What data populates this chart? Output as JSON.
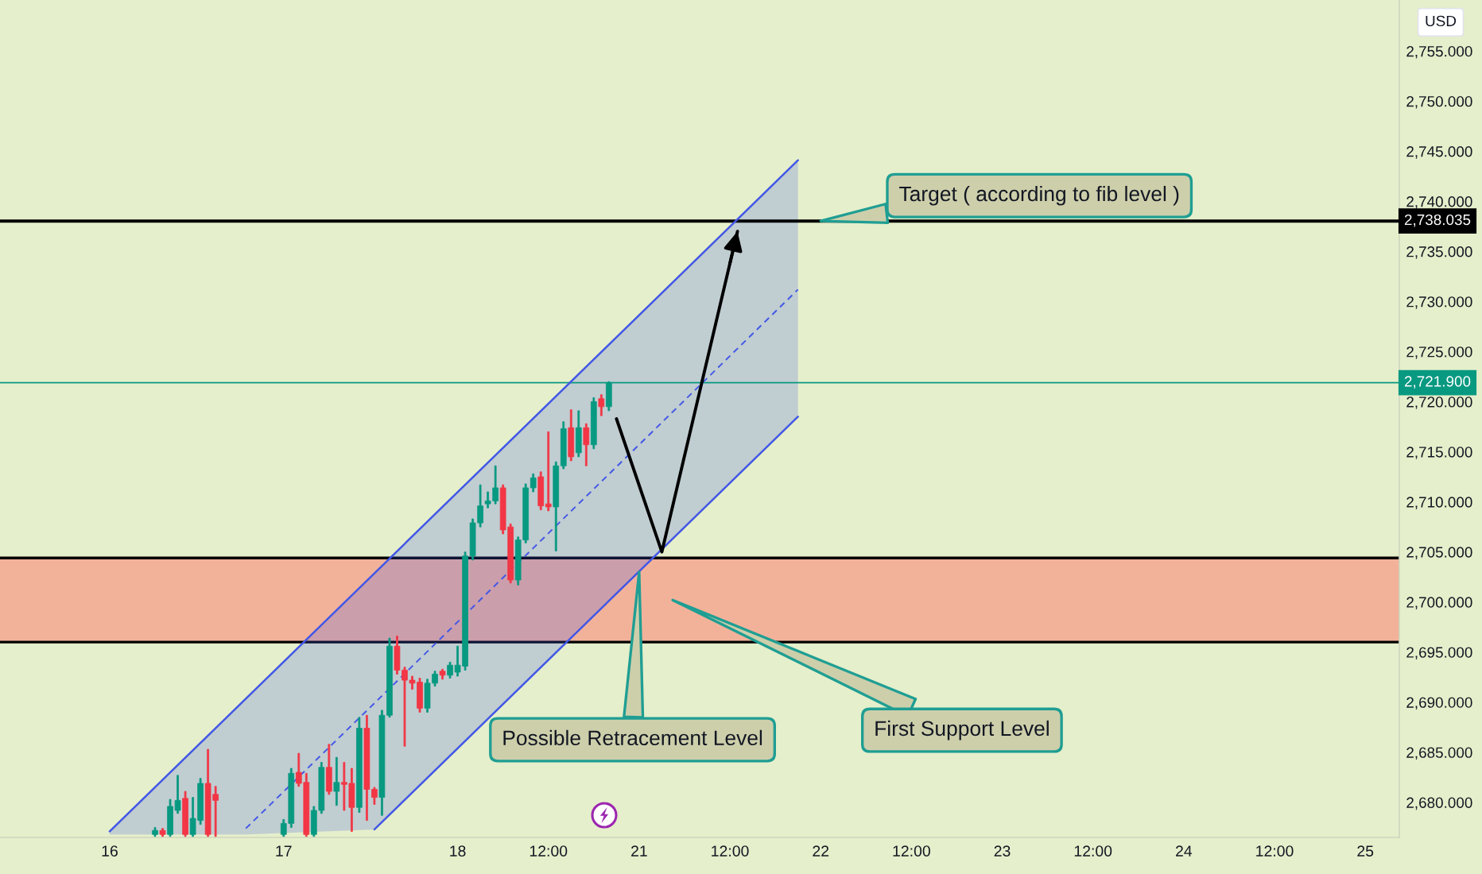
{
  "chart_data": {
    "type": "candlestick",
    "ylabel": "USD",
    "categories": [
      null,
      null,
      null,
      null,
      null,
      null,
      null,
      null,
      null,
      null,
      null,
      null,
      null,
      null,
      "16",
      null,
      null,
      null,
      null,
      null,
      null,
      null,
      null,
      null,
      null,
      null,
      null,
      null,
      null,
      null,
      null,
      null,
      null,
      null,
      null,
      null,
      null,
      "17",
      null,
      null,
      null,
      null,
      null,
      null,
      null,
      null,
      null,
      null,
      null,
      null,
      null,
      null,
      null,
      null,
      null,
      null,
      null,
      null,
      null,
      null,
      "18",
      null,
      null,
      null,
      null,
      null,
      null,
      null,
      null,
      null,
      null,
      null,
      "12:00",
      null,
      null,
      null,
      null,
      null,
      null,
      null,
      null,
      null,
      null,
      null,
      "21",
      null,
      null,
      null,
      null,
      null,
      null,
      null,
      null,
      null,
      null,
      null,
      "12:00",
      null,
      null,
      null,
      null,
      null,
      null,
      null,
      null,
      null,
      null,
      null,
      "22",
      null,
      null,
      null,
      null,
      null,
      null,
      null,
      null,
      null,
      null,
      null,
      "12:00",
      null,
      null,
      null,
      null,
      null,
      null,
      null,
      null,
      null,
      null,
      null,
      "23",
      null,
      null,
      null,
      null,
      null,
      null,
      null,
      null,
      null,
      null,
      null,
      "12:00",
      null,
      null,
      null,
      null,
      null,
      null,
      null,
      null,
      null,
      null,
      null,
      "24",
      null,
      null,
      null,
      null,
      null,
      null,
      null,
      null,
      null,
      null,
      null,
      "12:00",
      null,
      null,
      null,
      null,
      null,
      null,
      null,
      null,
      null,
      null,
      null,
      "25",
      null,
      null,
      null,
      null
    ],
    "ohlc": [
      null,
      null,
      null,
      null,
      null,
      null,
      null,
      null,
      null,
      null,
      null,
      null,
      null,
      null,
      null,
      null,
      null,
      null,
      null,
      null,
      [
        2676.8,
        2677.5,
        2676.6,
        2677.2
      ],
      [
        2677.2,
        2677.4,
        2676.6,
        2676.8
      ],
      [
        2676.8,
        2680.3,
        2676.6,
        2679.6
      ],
      [
        2679.2,
        2682.7,
        2678.9,
        2680.2
      ],
      [
        2680.4,
        2681.1,
        2676.6,
        2676.8
      ],
      [
        2676.8,
        2680.5,
        2676.6,
        2678.4
      ],
      [
        2678.2,
        2682.4,
        2677.8,
        2681.9
      ],
      [
        2681.9,
        2685.3,
        2676.6,
        2676.8
      ],
      [
        2680.8,
        2681.6,
        2676.6,
        2680.2
      ],
      null,
      null,
      null,
      null,
      null,
      null,
      null,
      null,
      [
        2676.8,
        2678.3,
        2676.6,
        2677.9
      ],
      [
        2677.9,
        2683.4,
        2677.5,
        2682.9
      ],
      [
        2683.0,
        2684.9,
        2681.6,
        2681.9
      ],
      [
        2682.0,
        2682.9,
        2676.6,
        2676.8
      ],
      [
        2676.8,
        2679.6,
        2676.6,
        2679.2
      ],
      [
        2679.2,
        2684.0,
        2678.9,
        2683.5
      ],
      [
        2683.5,
        2685.8,
        2680.8,
        2681.1
      ],
      [
        2681.1,
        2684.5,
        2679.7,
        2682.0
      ],
      [
        2682.0,
        2684.0,
        2679.2,
        2681.8
      ],
      [
        2681.9,
        2683.4,
        2677.1,
        2679.5
      ],
      [
        2679.5,
        2688.5,
        2679.0,
        2687.4
      ],
      [
        2687.4,
        2688.7,
        2678.2,
        2681.3
      ],
      [
        2681.3,
        2681.5,
        2679.8,
        2680.5
      ],
      [
        2680.5,
        2689.2,
        2678.7,
        2688.7
      ],
      [
        2688.7,
        2696.4,
        2688.5,
        2695.6
      ],
      [
        2695.6,
        2696.6,
        2692.8,
        2693.2
      ],
      [
        2693.2,
        2693.5,
        2685.6,
        2692.2
      ],
      [
        2692.2,
        2692.6,
        2691.3,
        2691.9
      ],
      [
        2692.0,
        2692.4,
        2689.0,
        2689.4
      ],
      [
        2689.4,
        2692.3,
        2689.0,
        2691.9
      ],
      [
        2691.9,
        2693.1,
        2691.6,
        2692.8
      ],
      [
        2693.1,
        2693.3,
        2692.3,
        2692.7
      ],
      [
        2692.7,
        2694.0,
        2692.4,
        2693.7
      ],
      [
        2693.0,
        2695.6,
        2692.6,
        2693.7
      ],
      [
        2693.6,
        2705.0,
        2693.2,
        2704.6
      ],
      [
        2704.6,
        2708.3,
        2704.2,
        2707.9
      ],
      [
        2707.9,
        2711.7,
        2707.5,
        2709.6
      ],
      [
        2709.8,
        2711.0,
        2709.4,
        2710.1
      ],
      [
        2710.1,
        2713.6,
        2709.8,
        2711.4
      ],
      [
        2711.4,
        2711.7,
        2706.8,
        2707.2
      ],
      [
        2707.5,
        2707.8,
        2701.9,
        2702.2
      ],
      [
        2702.2,
        2706.5,
        2701.7,
        2706.2
      ],
      [
        2706.2,
        2711.8,
        2705.9,
        2711.4
      ],
      [
        2711.4,
        2712.8,
        2711.0,
        2712.4
      ],
      [
        2712.5,
        2713.0,
        2709.2,
        2709.6
      ],
      [
        2709.8,
        2717.0,
        2709.1,
        2709.5
      ],
      [
        2709.5,
        2714.0,
        2705.1,
        2713.6
      ],
      [
        2713.6,
        2718.0,
        2713.3,
        2717.3
      ],
      [
        2717.4,
        2719.2,
        2714.1,
        2714.5
      ],
      [
        2714.9,
        2719.1,
        2714.5,
        2717.4
      ],
      [
        2717.4,
        2717.8,
        2713.6,
        2715.7
      ],
      [
        2715.7,
        2720.4,
        2715.3,
        2720.0
      ],
      [
        2720.3,
        2720.7,
        2718.6,
        2719.5
      ],
      [
        2719.5,
        2722.0,
        2719.1,
        2721.9
      ],
      null,
      null,
      null,
      null,
      null,
      null,
      null,
      null,
      null,
      null,
      null,
      null,
      null,
      null,
      null,
      null,
      null,
      null,
      null,
      null,
      null,
      null,
      null,
      null,
      null,
      null,
      null,
      null,
      null,
      null,
      null,
      null,
      null,
      null,
      null,
      null,
      null,
      null,
      null,
      null,
      null,
      null,
      null,
      null,
      null,
      null,
      null,
      null,
      null,
      null,
      null,
      null,
      null,
      null,
      null,
      null,
      null,
      null,
      null,
      null,
      null,
      null,
      null,
      null,
      null,
      null,
      null,
      null,
      null,
      null,
      null,
      null,
      null,
      null,
      null,
      null,
      null,
      null,
      null,
      null,
      null,
      null,
      null,
      null,
      null,
      null,
      null,
      null,
      null,
      null,
      null,
      null,
      null,
      null,
      null,
      null,
      null,
      null,
      null,
      null,
      null,
      null,
      null,
      null
    ],
    "colors": [
      null,
      null,
      null,
      null,
      null,
      null,
      null,
      null,
      null,
      null,
      null,
      null,
      null,
      null,
      null,
      null,
      null,
      null,
      null,
      null,
      "#089981",
      "#f23645",
      "#089981",
      "#089981",
      "#f23645",
      "#089981",
      "#089981",
      "#f23645",
      "#f23645",
      null,
      null,
      null,
      null,
      null,
      null,
      null,
      null,
      "#089981",
      "#089981",
      "#f23645",
      "#f23645",
      "#089981",
      "#089981",
      "#f23645",
      "#089981",
      "#f23645",
      "#f23645",
      "#089981",
      "#f23645",
      "#f23645",
      "#089981",
      "#089981",
      "#f23645",
      "#f23645",
      "#f23645",
      "#f23645",
      "#089981",
      "#089981",
      "#f23645",
      "#089981",
      "#089981",
      "#089981",
      "#089981",
      "#089981",
      "#089981",
      "#089981",
      "#f23645",
      "#f23645",
      "#089981",
      "#089981",
      "#089981",
      "#f23645",
      "#f23645",
      "#089981",
      "#089981",
      "#f23645",
      "#089981",
      "#f23645",
      "#089981",
      "#f23645",
      "#089981",
      null,
      null,
      null,
      null,
      null,
      null,
      null,
      null,
      null,
      null,
      null,
      null,
      null,
      null,
      null,
      null,
      null,
      null,
      null,
      null,
      null,
      null,
      null,
      null,
      null,
      null,
      null,
      null,
      null,
      null,
      null,
      null,
      null,
      null,
      null,
      null,
      null,
      null,
      null,
      null,
      null,
      null,
      null,
      null,
      null,
      null,
      null,
      null,
      null,
      null,
      null,
      null,
      null,
      null,
      null,
      null,
      null,
      null,
      null,
      null,
      null,
      null,
      null,
      null,
      null,
      null,
      null,
      null,
      null,
      null,
      null,
      null,
      null,
      null,
      null,
      null,
      null,
      null,
      null,
      null,
      null,
      null,
      null,
      null,
      null,
      null,
      null,
      null,
      null,
      null,
      null,
      null,
      null,
      null,
      null,
      null,
      null,
      null,
      null,
      null,
      null,
      null,
      null,
      null
    ],
    "series": [
      {
        "type": "line",
        "color": "#4257e6",
        "line_style": "solid",
        "values": [
          null,
          null,
          null,
          null,
          null,
          null,
          null,
          null,
          null,
          null,
          null,
          null,
          null,
          null,
          2677.1,
          null,
          null,
          null,
          null,
          null,
          null,
          null,
          null,
          null,
          null,
          null,
          null,
          null,
          null,
          null,
          null,
          null,
          null,
          null,
          null,
          null,
          null,
          null,
          null,
          null,
          null,
          null,
          null,
          null,
          null,
          null,
          null,
          null,
          null,
          null,
          null,
          null,
          null,
          null,
          null,
          null,
          null,
          null,
          null,
          null,
          null,
          null,
          null,
          null,
          null,
          null,
          null,
          null,
          null,
          null,
          null,
          null,
          null,
          null,
          null,
          null,
          null,
          null,
          null,
          null,
          null,
          null,
          null,
          null,
          null,
          null,
          null,
          null,
          null,
          null,
          null,
          null,
          null,
          null,
          null,
          null,
          null,
          null,
          null,
          null,
          null,
          null,
          null,
          null,
          null,
          2744.1,
          null,
          null,
          null,
          null,
          null,
          null,
          null,
          null,
          null,
          null,
          null,
          null,
          null,
          null,
          null,
          null,
          null,
          null,
          null,
          null,
          null,
          null,
          null,
          null,
          null,
          null,
          null,
          null,
          null,
          null,
          null,
          null,
          null,
          null,
          null,
          null,
          null,
          null,
          null,
          null,
          null,
          null,
          null,
          null,
          null,
          null,
          null,
          null,
          null,
          null,
          null,
          null,
          null,
          null,
          null,
          null,
          null,
          null,
          null,
          null,
          null,
          null,
          null,
          null,
          null,
          null,
          null,
          null,
          null,
          null,
          null,
          null,
          null,
          null,
          null,
          null,
          null,
          null,
          null
        ]
      },
      {
        "type": "line",
        "color": "#4257e6",
        "line_style": "dashed",
        "values": [
          null,
          null,
          null,
          null,
          null,
          null,
          null,
          null,
          null,
          null,
          null,
          null,
          null,
          null,
          null,
          null,
          null,
          null,
          null,
          null,
          null,
          null,
          null,
          null,
          null,
          null,
          null,
          null,
          null,
          null,
          null,
          null,
          2677.4,
          null,
          null,
          null,
          null,
          null,
          null,
          null,
          null,
          null,
          null,
          null,
          null,
          null,
          null,
          null,
          null,
          2689.9,
          null,
          null,
          null,
          null,
          null,
          null,
          null,
          null,
          null,
          null,
          null,
          null,
          null,
          null,
          null,
          null,
          null,
          null,
          null,
          null,
          null,
          null,
          null,
          null,
          null,
          null,
          null,
          null,
          null,
          null,
          null,
          null,
          null,
          null,
          null,
          null,
          null,
          null,
          null,
          null,
          null,
          null,
          null,
          null,
          null,
          null,
          null,
          null,
          null,
          null,
          null,
          null,
          null,
          null,
          null,
          2731.2,
          null,
          null,
          null,
          null,
          null,
          null,
          null,
          null,
          null,
          null,
          null,
          null,
          null,
          null,
          null,
          null,
          null,
          null,
          null,
          null,
          null,
          null,
          null,
          null,
          null,
          null,
          null,
          null,
          null,
          null,
          null,
          null,
          null,
          null,
          null,
          null,
          null,
          null,
          null,
          null,
          null,
          null,
          null,
          null,
          null,
          null,
          null,
          null,
          null,
          null,
          null,
          null,
          null,
          null,
          null,
          null,
          null,
          null,
          null,
          null,
          null,
          null,
          null,
          null,
          null,
          null,
          null,
          null,
          null,
          null,
          null,
          null,
          null,
          null,
          null,
          null,
          null,
          null,
          null
        ],
        "lower": [
          null,
          null,
          null,
          null,
          null,
          null,
          null,
          null,
          null,
          null,
          null,
          null,
          null,
          null,
          2676.8,
          null,
          null,
          null,
          null,
          null,
          null,
          null,
          null,
          null,
          null,
          null,
          null,
          null,
          null,
          null,
          null,
          null,
          2676.8,
          null,
          null,
          null,
          null,
          null,
          null,
          null,
          null,
          null,
          null,
          null,
          null,
          null,
          null,
          null,
          null,
          2677.3,
          null,
          null,
          null,
          null,
          null,
          null,
          null,
          null,
          null,
          null,
          null,
          null,
          null,
          null,
          null,
          null,
          null,
          null,
          null,
          null,
          null,
          null,
          null,
          null,
          null,
          null,
          null,
          null,
          null,
          null,
          null,
          null,
          null,
          null,
          null,
          null,
          null,
          null,
          null,
          null,
          null,
          null,
          null,
          null,
          null,
          null,
          null,
          null,
          null,
          null,
          null,
          null,
          null,
          null,
          null,
          2718.5,
          null,
          null,
          null,
          null,
          null,
          null,
          null,
          null,
          null,
          null,
          null,
          null,
          null,
          null,
          null,
          null,
          null,
          null,
          null,
          null,
          null,
          null,
          null,
          null,
          null,
          null,
          null,
          null,
          null,
          null,
          null,
          null,
          null,
          null,
          null,
          null,
          null,
          null,
          null,
          null,
          null,
          null,
          null,
          null,
          null,
          null,
          null,
          null,
          null,
          null,
          null,
          null,
          null,
          null,
          null,
          null,
          null,
          null,
          null,
          null,
          null,
          null,
          null,
          null,
          null,
          null,
          null,
          null,
          null,
          null,
          null,
          null,
          null,
          null,
          null,
          null,
          null,
          null,
          null
        ],
        "upper": [
          null,
          null,
          null,
          null,
          null,
          null,
          null,
          null,
          null,
          null,
          null,
          null,
          null,
          null,
          2677.1,
          null,
          null,
          null,
          null,
          null,
          null,
          null,
          null,
          null,
          null,
          null,
          null,
          null,
          null,
          null,
          null,
          null,
          2690.3,
          null,
          null,
          null,
          null,
          null,
          null,
          null,
          null,
          null,
          null,
          null,
          null,
          null,
          null,
          null,
          null,
          2702.8,
          null,
          null,
          null,
          null,
          null,
          null,
          null,
          null,
          null,
          null,
          null,
          null,
          null,
          null,
          null,
          null,
          null,
          null,
          null,
          null,
          null,
          null,
          null,
          null,
          null,
          null,
          null,
          null,
          null,
          null,
          null,
          null,
          null,
          null,
          null,
          null,
          null,
          null,
          null,
          null,
          null,
          null,
          null,
          null,
          null,
          null,
          null,
          null,
          null,
          null,
          null,
          null,
          null,
          null,
          null,
          2744.1,
          null,
          null,
          null,
          null,
          null,
          null,
          null,
          null,
          null,
          null,
          null,
          null,
          null,
          null,
          null,
          null,
          null,
          null,
          null,
          null,
          null,
          null,
          null,
          null,
          null,
          null,
          null,
          null,
          null,
          null,
          null,
          null,
          null,
          null,
          null,
          null,
          null,
          null,
          null,
          null,
          null,
          null,
          null,
          null,
          null,
          null,
          null,
          null,
          null,
          null,
          null,
          null,
          null,
          null,
          null,
          null,
          null,
          null,
          null,
          null,
          null,
          null,
          null,
          null,
          null,
          null,
          null,
          null,
          null,
          null,
          null,
          null,
          null,
          null,
          null,
          null,
          null,
          null,
          null
        ]
      },
      {
        "type": "line",
        "color": "#4257e6",
        "line_style": "solid",
        "values": [
          null,
          null,
          null,
          null,
          null,
          null,
          null,
          null,
          null,
          null,
          null,
          null,
          null,
          null,
          null,
          null,
          null,
          null,
          null,
          null,
          null,
          null,
          null,
          null,
          null,
          null,
          null,
          null,
          null,
          null,
          null,
          null,
          null,
          null,
          null,
          null,
          null,
          null,
          null,
          null,
          null,
          null,
          null,
          null,
          null,
          null,
          null,
          null,
          null,
          2677.3,
          null,
          null,
          null,
          null,
          null,
          null,
          null,
          null,
          null,
          null,
          null,
          null,
          null,
          null,
          null,
          null,
          null,
          null,
          null,
          null,
          null,
          null,
          null,
          null,
          null,
          null,
          null,
          null,
          null,
          null,
          null,
          null,
          null,
          null,
          null,
          null,
          null,
          null,
          null,
          null,
          null,
          null,
          null,
          null,
          null,
          null,
          null,
          null,
          null,
          null,
          null,
          null,
          null,
          null,
          null,
          2718.5,
          null,
          null,
          null,
          null,
          null,
          null,
          null,
          null,
          null,
          null,
          null,
          null,
          null,
          null,
          null,
          null,
          null,
          null,
          null,
          null,
          null,
          null,
          null,
          null,
          null,
          null,
          null,
          null,
          null,
          null,
          null,
          null,
          null,
          null,
          null,
          null,
          null,
          null,
          null,
          null,
          null,
          null,
          null,
          null,
          null,
          null,
          null,
          null,
          null,
          null,
          null,
          null,
          null,
          null,
          null,
          null,
          null,
          null,
          null,
          null,
          null,
          null,
          null,
          null,
          null,
          null,
          null,
          null,
          null,
          null,
          null,
          null,
          null,
          null,
          null,
          null,
          null,
          null,
          null
        ]
      },
      {
        "type": "line",
        "color": "#000000",
        "line_style": "solid",
        "values": [
          null,
          null,
          null,
          null,
          null,
          null,
          null,
          null,
          null,
          null,
          null,
          null,
          null,
          null,
          null,
          null,
          null,
          null,
          null,
          null,
          null,
          null,
          null,
          null,
          null,
          null,
          null,
          null,
          null,
          null,
          null,
          null,
          null,
          null,
          null,
          null,
          null,
          null,
          null,
          null,
          null,
          null,
          null,
          null,
          null,
          null,
          null,
          null,
          null,
          null,
          null,
          null,
          null,
          null,
          null,
          null,
          null,
          null,
          null,
          null,
          null,
          null,
          null,
          null,
          null,
          null,
          null,
          null,
          null,
          null,
          null,
          null,
          null,
          null,
          null,
          null,
          null,
          null,
          null,
          null,
          null,
          2718.3,
          null,
          null,
          null,
          null,
          null,
          2705.0,
          null,
          null,
          null,
          null,
          null,
          null,
          null,
          null,
          null,
          2737.0,
          null,
          null,
          null,
          null,
          null,
          null,
          null,
          null,
          null,
          null,
          null,
          null,
          null,
          null,
          null,
          null,
          null,
          null,
          null,
          null,
          null,
          null,
          null,
          null,
          null,
          null,
          null,
          null,
          null,
          null,
          null,
          null,
          null,
          null,
          null,
          null,
          null,
          null,
          null,
          null,
          null,
          null,
          null,
          null,
          null,
          null,
          null,
          null,
          null,
          null,
          null,
          null,
          null,
          null,
          null,
          null,
          null,
          null,
          null,
          null,
          null,
          null,
          null,
          null,
          null,
          null,
          null,
          null,
          null,
          null,
          null,
          null,
          null,
          null,
          null,
          null,
          null,
          null,
          null,
          null,
          null,
          null,
          null,
          null,
          null,
          null,
          null
        ]
      }
    ],
    "bands": [
      {
        "axis": "y",
        "from": 2696.0,
        "to": 2704.4,
        "color": "#f2b29a",
        "label": "First Support Level"
      }
    ],
    "ref_lines": [
      {
        "axis": "y",
        "value": 2738.035,
        "label": "2,738.035",
        "color": "#000000"
      },
      {
        "axis": "y",
        "value": 2721.9,
        "label": "2,721.900",
        "color": "#089981"
      }
    ],
    "annotations": [
      {
        "text": "Target ( according to fib level )",
        "x": "22",
        "y": 2738.035
      },
      {
        "text": "Possible Retracement Level",
        "x": "21",
        "y": 2703.0
      }
    ],
    "ylim": [
      2676.5,
      2760.1
    ],
    "yticks": [
      {
        "value": 2680,
        "label": "2,680.000"
      },
      {
        "value": 2685,
        "label": "2,685.000"
      },
      {
        "value": 2690,
        "label": "2,690.000"
      },
      {
        "value": 2695,
        "label": "2,695.000"
      },
      {
        "value": 2700,
        "label": "2,700.000"
      },
      {
        "value": 2705,
        "label": "2,705.000"
      },
      {
        "value": 2710,
        "label": "2,710.000"
      },
      {
        "value": 2715,
        "label": "2,715.000"
      },
      {
        "value": 2720,
        "label": "2,720.000"
      },
      {
        "value": 2725,
        "label": "2,725.000"
      },
      {
        "value": 2730,
        "label": "2,730.000"
      },
      {
        "value": 2735,
        "label": "2,735.000"
      },
      {
        "value": 2740,
        "label": "2,740.000"
      },
      {
        "value": 2745,
        "label": "2,745.000"
      },
      {
        "value": 2750,
        "label": "2,750.000"
      },
      {
        "value": 2755,
        "label": "2,755.000"
      }
    ]
  }
}
